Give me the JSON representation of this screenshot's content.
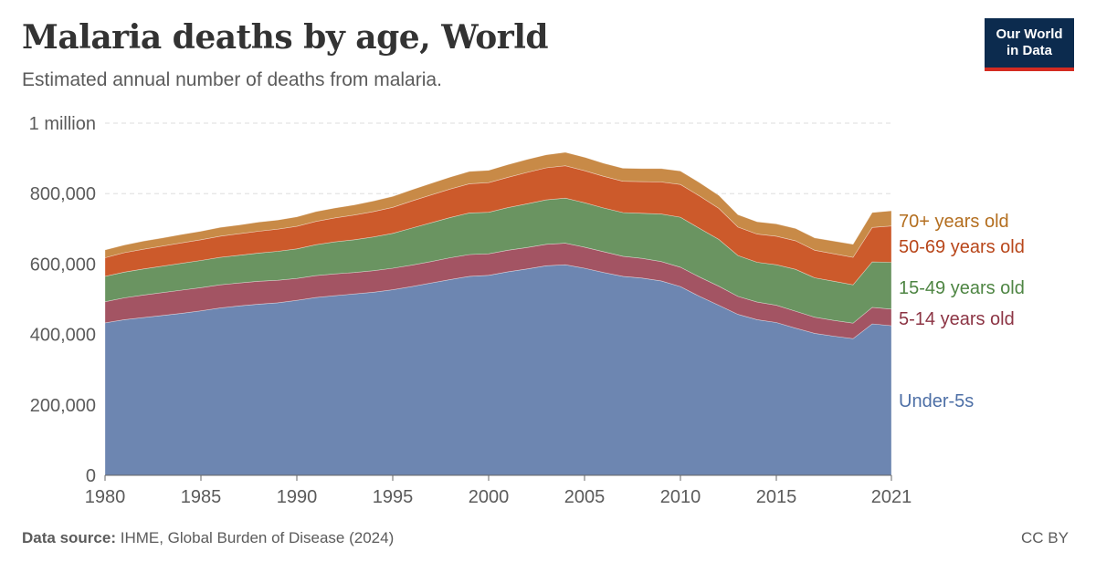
{
  "header": {
    "title": "Malaria deaths by age, World",
    "subtitle": "Estimated annual number of deaths from malaria."
  },
  "logo": {
    "line1": "Our World",
    "line2": "in Data"
  },
  "footer": {
    "source_label": "Data source:",
    "source_text": "IHME, Global Burden of Disease (2024)",
    "license": "CC BY"
  },
  "chart_data": {
    "type": "area",
    "stacked": true,
    "title": "Malaria deaths by age, World",
    "subtitle": "Estimated annual number of deaths from malaria.",
    "xlabel": "",
    "ylabel": "",
    "xlim": [
      1980,
      2021
    ],
    "ylim": [
      0,
      1000000
    ],
    "grid": true,
    "x_tick_labels": [
      "1980",
      "1985",
      "1990",
      "1995",
      "2000",
      "2005",
      "2010",
      "2015",
      "2021"
    ],
    "x_tick_values": [
      1980,
      1985,
      1990,
      1995,
      2000,
      2005,
      2010,
      2015,
      2021
    ],
    "y_tick_labels": [
      "0",
      "200,000",
      "400,000",
      "600,000",
      "800,000",
      "1 million"
    ],
    "y_tick_values": [
      0,
      200000,
      400000,
      600000,
      800000,
      1000000
    ],
    "x": [
      1980,
      1981,
      1982,
      1983,
      1984,
      1985,
      1986,
      1987,
      1988,
      1989,
      1990,
      1991,
      1992,
      1993,
      1994,
      1995,
      1996,
      1997,
      1998,
      1999,
      2000,
      2001,
      2002,
      2003,
      2004,
      2005,
      2006,
      2007,
      2008,
      2009,
      2010,
      2011,
      2012,
      2013,
      2014,
      2015,
      2016,
      2017,
      2018,
      2019,
      2020,
      2021
    ],
    "series": [
      {
        "name": "Under-5s",
        "color": "#6d86b1",
        "values": [
          433000,
          442000,
          448000,
          454000,
          460000,
          467000,
          475000,
          481000,
          486000,
          490000,
          497000,
          505000,
          510000,
          515000,
          520000,
          527000,
          536000,
          546000,
          556000,
          565000,
          568000,
          578000,
          586000,
          595000,
          598000,
          588000,
          576000,
          565000,
          560000,
          552000,
          536000,
          508000,
          483000,
          457000,
          442000,
          434000,
          418000,
          403000,
          395000,
          388000,
          430000,
          425000
        ]
      },
      {
        "name": "5-14 years old",
        "color": "#a35463",
        "values": [
          60000,
          62000,
          64000,
          65000,
          66000,
          66000,
          66000,
          65000,
          65000,
          64000,
          62000,
          62000,
          62000,
          61000,
          61000,
          61000,
          61000,
          61000,
          62000,
          62000,
          61000,
          61000,
          61000,
          61000,
          61000,
          60000,
          59000,
          57000,
          56000,
          55000,
          55000,
          55000,
          54000,
          51000,
          50000,
          49000,
          48000,
          46000,
          45000,
          44000,
          47000,
          47000
        ]
      },
      {
        "name": "15-49 years old",
        "color": "#6a9461",
        "values": [
          72000,
          73000,
          74000,
          75000,
          76000,
          77000,
          78000,
          79000,
          80000,
          82000,
          84000,
          88000,
          91000,
          93000,
          96000,
          99000,
          105000,
          110000,
          114000,
          118000,
          118000,
          121000,
          124000,
          126000,
          128000,
          126000,
          124000,
          124000,
          128000,
          135000,
          142000,
          138000,
          133000,
          116000,
          113000,
          115000,
          119000,
          112000,
          111000,
          109000,
          129000,
          133000
        ]
      },
      {
        "name": "50-69 years old",
        "color": "#cc5a2b",
        "values": [
          53000,
          55000,
          56000,
          57000,
          58000,
          59000,
          60000,
          61000,
          62000,
          63000,
          64000,
          66000,
          68000,
          70000,
          72000,
          74000,
          77000,
          79000,
          81000,
          83000,
          84000,
          86000,
          89000,
          91000,
          92000,
          91000,
          90000,
          89000,
          90000,
          91000,
          93000,
          92000,
          88000,
          81000,
          80000,
          81000,
          81000,
          78000,
          78000,
          78000,
          98000,
          103000
        ]
      },
      {
        "name": "70+ years old",
        "color": "#c88a47",
        "values": [
          22000,
          22000,
          23000,
          23000,
          24000,
          24000,
          25000,
          25000,
          26000,
          26000,
          27000,
          28000,
          28000,
          29000,
          30000,
          31000,
          32000,
          33000,
          34000,
          35000,
          35000,
          36000,
          37000,
          37000,
          38000,
          38000,
          37000,
          37000,
          37000,
          38000,
          38000,
          38000,
          37000,
          35000,
          35000,
          35000,
          35000,
          35000,
          36000,
          37000,
          42000,
          43000
        ]
      }
    ],
    "label_colors": {
      "Under-5s": "#4d6fa6",
      "5-14 years old": "#8c3444",
      "15-49 years old": "#4e8543",
      "50-69 years old": "#b8461a",
      "70+ years old": "#b36e1f"
    }
  }
}
